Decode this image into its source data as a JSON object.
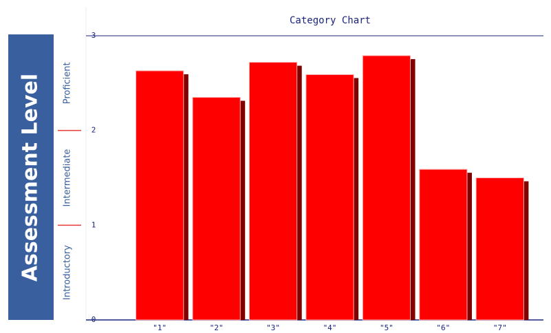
{
  "chart_data": {
    "type": "bar",
    "title": "Category Chart",
    "y_panel_label": "Assessment Level",
    "level_labels": [
      "Introductory",
      "Intermediate",
      "Proficient"
    ],
    "categories": [
      "\"1\"",
      "\"2\"",
      "\"3\"",
      "\"4\"",
      "\"5\"",
      "\"6\"",
      "\"7\""
    ],
    "values": [
      2.63,
      2.35,
      2.72,
      2.59,
      2.79,
      1.59,
      1.5
    ],
    "color": "#ff0000",
    "shadow_color": "#800000",
    "ylim": [
      0,
      3
    ],
    "yticks": [
      0,
      1,
      2,
      3
    ]
  }
}
